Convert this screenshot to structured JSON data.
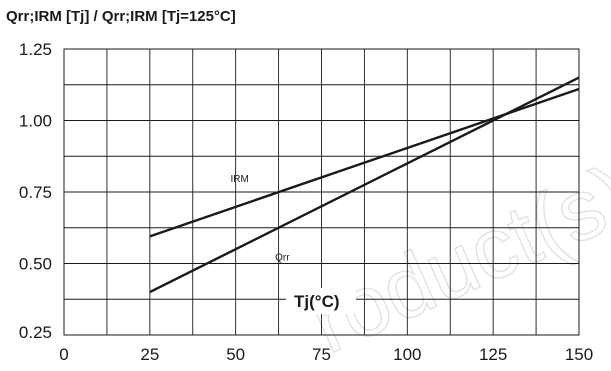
{
  "chart_data": {
    "type": "line",
    "title": "Qrr;IRM [Tj] / Qrr;IRM [Tj=125°C]",
    "xlabel": "Tj(°C)",
    "ylabel": "",
    "xlim": [
      0,
      150
    ],
    "ylim": [
      0.25,
      1.25
    ],
    "grid": true,
    "x_ticks": [
      "0",
      "25",
      "50",
      "75",
      "100",
      "125",
      "150"
    ],
    "x_tick_values": [
      0,
      25,
      50,
      75,
      100,
      125,
      150
    ],
    "x_minor_step": 12.5,
    "y_ticks": [
      "0.25",
      "0.50",
      "0.75",
      "1.00",
      "1.25"
    ],
    "y_tick_values": [
      0.25,
      0.5,
      0.75,
      1.0,
      1.25
    ],
    "y_minor_step": 0.125,
    "series": [
      {
        "name": "IRM",
        "x": [
          25,
          150
        ],
        "y": [
          0.595,
          1.11
        ],
        "label_at": [
          48.5,
          0.785
        ]
      },
      {
        "name": "Qrr",
        "x": [
          25,
          150
        ],
        "y": [
          0.4,
          1.15
        ],
        "label_at": [
          61.5,
          0.51
        ]
      }
    ],
    "watermark": "roduct(s)",
    "colors": {
      "line": "#1a1a1a",
      "grid": "#1a1a1a",
      "text": "#1a1a1a",
      "watermark": "#e2e2e2"
    }
  }
}
